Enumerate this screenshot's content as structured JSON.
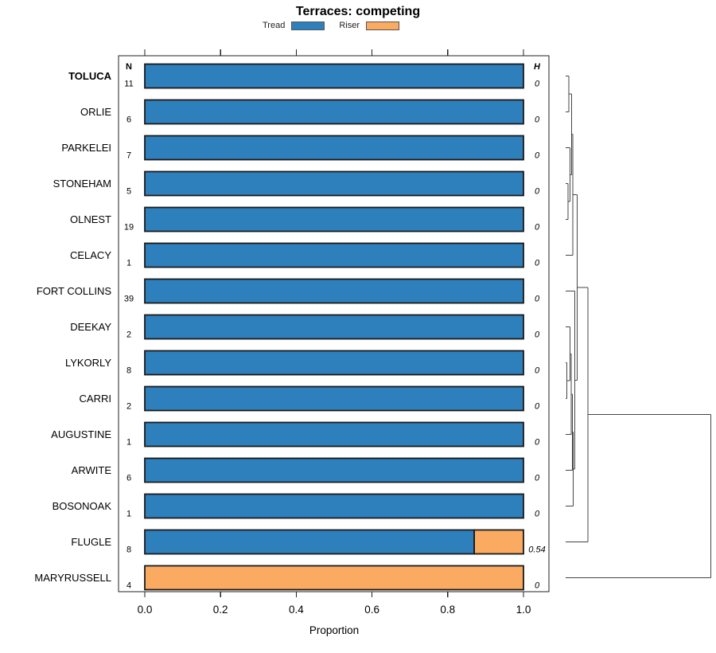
{
  "title": "Terraces: competing",
  "legend": {
    "tread": {
      "label": "Tread",
      "color": "#2E80BD"
    },
    "riser": {
      "label": "Riser",
      "color": "#FAAB61"
    }
  },
  "columns": {
    "n_header": "N",
    "h_header": "H"
  },
  "chart_data": {
    "type": "bar",
    "orientation": "horizontal-stacked",
    "title": "Terraces: competing",
    "xlabel": "Proportion",
    "xlim": [
      0,
      1
    ],
    "x_ticks": [
      0,
      0.2,
      0.4,
      0.6,
      0.8,
      1.0
    ],
    "x_tick_labels": [
      "0.0",
      "0.2",
      "0.4",
      "0.6",
      "0.8",
      "1.0"
    ],
    "grid": false,
    "legend_position": "top",
    "highlight_row": "TOLUCA",
    "categories": [
      "TOLUCA",
      "ORLIE",
      "PARKELEI",
      "STONEHAM",
      "OLNEST",
      "CELACY",
      "FORT COLLINS",
      "DEEKAY",
      "LYKORLY",
      "CARRI",
      "AUGUSTINE",
      "ARWITE",
      "BOSONOAK",
      "FLUGLE",
      "MARYRUSSELL"
    ],
    "n_values": [
      11,
      6,
      7,
      5,
      19,
      1,
      39,
      2,
      8,
      2,
      1,
      6,
      1,
      8,
      4
    ],
    "h_values": [
      "0",
      "0",
      "0",
      "0",
      "0",
      "0",
      "0",
      "0",
      "0",
      "0",
      "0",
      "0",
      "0",
      "0.54",
      "0"
    ],
    "series": [
      {
        "name": "Tread",
        "color": "#2E80BD",
        "values": [
          1,
          1,
          1,
          1,
          1,
          1,
          1,
          1,
          1,
          1,
          1,
          1,
          1,
          0.87,
          0
        ]
      },
      {
        "name": "Riser",
        "color": "#FAAB61",
        "values": [
          0,
          0,
          0,
          0,
          0,
          0,
          0,
          0,
          0,
          0,
          0,
          0,
          0,
          0.13,
          1
        ]
      }
    ]
  },
  "dendrogram": {
    "leaf_order": [
      "TOLUCA",
      "ORLIE",
      "PARKELEI",
      "STONEHAM",
      "OLNEST",
      "CELACY",
      "FORT COLLINS",
      "DEEKAY",
      "LYKORLY",
      "CARRI",
      "AUGUSTINE",
      "ARWITE",
      "BOSONOAK",
      "FLUGLE",
      "MARYRUSSELL"
    ],
    "merges": [
      {
        "id": "m0",
        "children": [
          "TOLUCA",
          "ORLIE"
        ],
        "x": 715
      },
      {
        "id": "m1",
        "children": [
          "STONEHAM",
          "OLNEST"
        ],
        "x": 714
      },
      {
        "id": "m2",
        "children": [
          "PARKELEI",
          "m1"
        ],
        "x": 716.5
      },
      {
        "id": "m3",
        "children": [
          "m0",
          "m2"
        ],
        "x": 718.5
      },
      {
        "id": "m4",
        "children": [
          "m3",
          "CELACY"
        ],
        "x": 720
      },
      {
        "id": "m5",
        "children": [
          "LYKORLY",
          "CARRI"
        ],
        "x": 712.5
      },
      {
        "id": "m6",
        "children": [
          "DEEKAY",
          "m5"
        ],
        "x": 716.5
      },
      {
        "id": "m7",
        "children": [
          "m6",
          "AUGUSTINE"
        ],
        "x": 718
      },
      {
        "id": "m8",
        "children": [
          "m7",
          "ARWITE"
        ],
        "x": 719.3
      },
      {
        "id": "m9",
        "children": [
          "m8",
          "BOSONOAK"
        ],
        "x": 720.3
      },
      {
        "id": "m10",
        "children": [
          "FORT COLLINS",
          "m9"
        ],
        "x": 722.3
      },
      {
        "id": "m11",
        "children": [
          "m4",
          "m10"
        ],
        "x": 725.5
      },
      {
        "id": "m12",
        "children": [
          "m11",
          "FLUGLE"
        ],
        "x": 739
      },
      {
        "id": "m13",
        "children": [
          "m12",
          "MARYRUSSELL"
        ],
        "x": 893.3
      }
    ]
  },
  "colors": {
    "bar_border": "#1a1a1a",
    "axis": "#222222",
    "dendrogram_line": "#444444",
    "text": "#000000"
  }
}
